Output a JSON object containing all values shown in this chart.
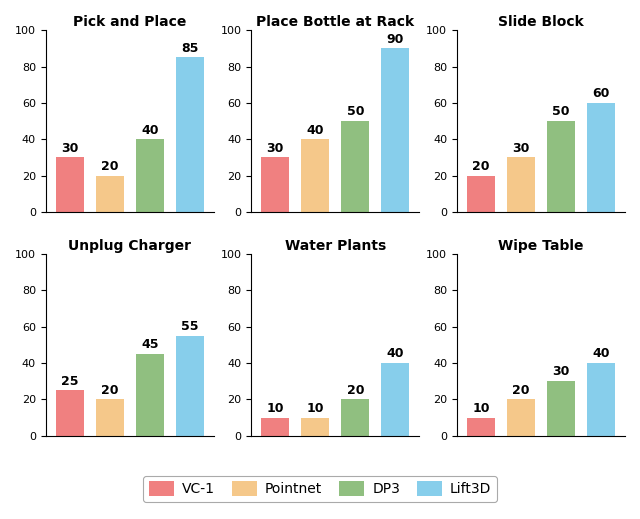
{
  "subplots": [
    {
      "title": "Pick and Place",
      "values": [
        30,
        20,
        40,
        85
      ]
    },
    {
      "title": "Place Bottle at Rack",
      "values": [
        30,
        40,
        50,
        90
      ]
    },
    {
      "title": "Slide Block",
      "values": [
        20,
        30,
        50,
        60
      ]
    },
    {
      "title": "Unplug Charger",
      "values": [
        25,
        20,
        45,
        55
      ]
    },
    {
      "title": "Water Plants",
      "values": [
        10,
        10,
        20,
        40
      ]
    },
    {
      "title": "Wipe Table",
      "values": [
        10,
        20,
        30,
        40
      ]
    }
  ],
  "legend_labels": [
    "VC-1",
    "Pointnet",
    "DP3",
    "Lift3D"
  ],
  "bar_colors": [
    "#f08080",
    "#f5c88a",
    "#90bf80",
    "#87ceeb"
  ],
  "ylim": [
    0,
    100
  ],
  "yticks": [
    0,
    20,
    40,
    60,
    80,
    100
  ],
  "title_fontsize": 10,
  "label_fontsize": 9,
  "legend_fontsize": 10,
  "tick_fontsize": 8,
  "background_color": "#ffffff",
  "figure_facecolor": "#ffffff"
}
